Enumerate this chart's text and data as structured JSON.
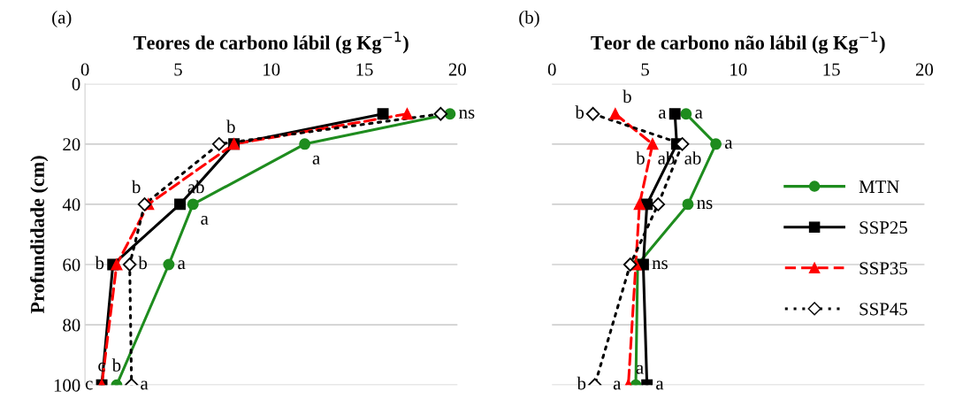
{
  "chart_data": [
    {
      "type": "line",
      "title": "Teores de carbono lábil (g Kg$^{−1}$)",
      "ylabel": "Profundidade (cm)",
      "xlim": [
        0,
        20
      ],
      "xticks": [
        0,
        5,
        10,
        15,
        20
      ],
      "ylim": [
        100,
        0
      ],
      "yticks": [
        0,
        20,
        40,
        60,
        80,
        100
      ],
      "grid": "y",
      "legend": false,
      "series": [
        {
          "color": "#1e8c1e",
          "marker": "circle",
          "line_style": "solid",
          "x": [
            19.6,
            11.8,
            5.8,
            4.5,
            1.7
          ],
          "values": [
            10,
            20,
            40,
            60,
            100
          ],
          "value_labels": [
            "ns",
            "a",
            "a",
            "a",
            "b"
          ]
        },
        {
          "color": "#000000",
          "marker": "square",
          "line_style": "solid",
          "x": [
            16.0,
            8.0,
            5.1,
            1.5,
            0.9
          ],
          "values": [
            10,
            20,
            40,
            60,
            100
          ],
          "value_labels": [
            null,
            null,
            "ab",
            "b",
            "c"
          ]
        },
        {
          "color": "#ff0000",
          "marker": "triangle",
          "line_style": "dashed",
          "x": [
            17.3,
            8.0,
            3.4,
            1.7,
            0.9
          ],
          "values": [
            10,
            20,
            40,
            60,
            100
          ],
          "value_labels": [
            null,
            null,
            "b",
            null,
            "c"
          ]
        },
        {
          "color": "#000000",
          "marker": "diamond",
          "line_style": "dotted",
          "x": [
            19.1,
            7.2,
            3.2,
            2.4,
            2.5
          ],
          "values": [
            10,
            20,
            40,
            60,
            100
          ],
          "value_labels": [
            null,
            "b",
            null,
            "b",
            "a"
          ]
        }
      ],
      "annotations": [
        "(a)"
      ]
    },
    {
      "type": "line",
      "title": "Teor de carbono não lábil (g Kg$^{−1}$)",
      "xlim": [
        0,
        20
      ],
      "xticks": [
        0,
        5,
        10,
        15,
        20
      ],
      "ylim": [
        100,
        0
      ],
      "yticks": [
        0,
        20,
        40,
        60,
        80,
        100
      ],
      "grid": "y",
      "legend": "right",
      "tick_labels": "x",
      "series": [
        {
          "name": "MTN",
          "color": "#1e8c1e",
          "marker": "circle",
          "line_style": "solid",
          "x": [
            7.2,
            8.8,
            7.3,
            4.6,
            4.5
          ],
          "values": [
            10,
            20,
            40,
            60,
            100
          ],
          "value_labels": [
            "a",
            "a",
            "ns",
            null,
            "a"
          ]
        },
        {
          "name": "SSP25",
          "color": "#000000",
          "marker": "square",
          "line_style": "solid",
          "x": [
            6.6,
            6.7,
            5.1,
            4.9,
            5.1
          ],
          "values": [
            10,
            20,
            40,
            60,
            100
          ],
          "value_labels": [
            "a",
            "ab",
            null,
            "ns",
            "a"
          ]
        },
        {
          "name": "SSP35",
          "color": "#ff0000",
          "marker": "triangle",
          "line_style": "dashed",
          "x": [
            3.4,
            5.4,
            4.7,
            4.5,
            4.1
          ],
          "values": [
            10,
            20,
            40,
            60,
            100
          ],
          "value_labels": [
            "b",
            "b",
            null,
            null,
            "a"
          ]
        },
        {
          "name": "SSP45",
          "color": "#000000",
          "marker": "diamond",
          "line_style": "dotted",
          "x": [
            2.2,
            7.0,
            5.7,
            4.2,
            2.3
          ],
          "values": [
            10,
            20,
            40,
            60,
            100
          ],
          "value_labels": [
            "b",
            "ab",
            null,
            null,
            "b"
          ]
        }
      ],
      "annotations": [
        "(b)"
      ]
    }
  ]
}
